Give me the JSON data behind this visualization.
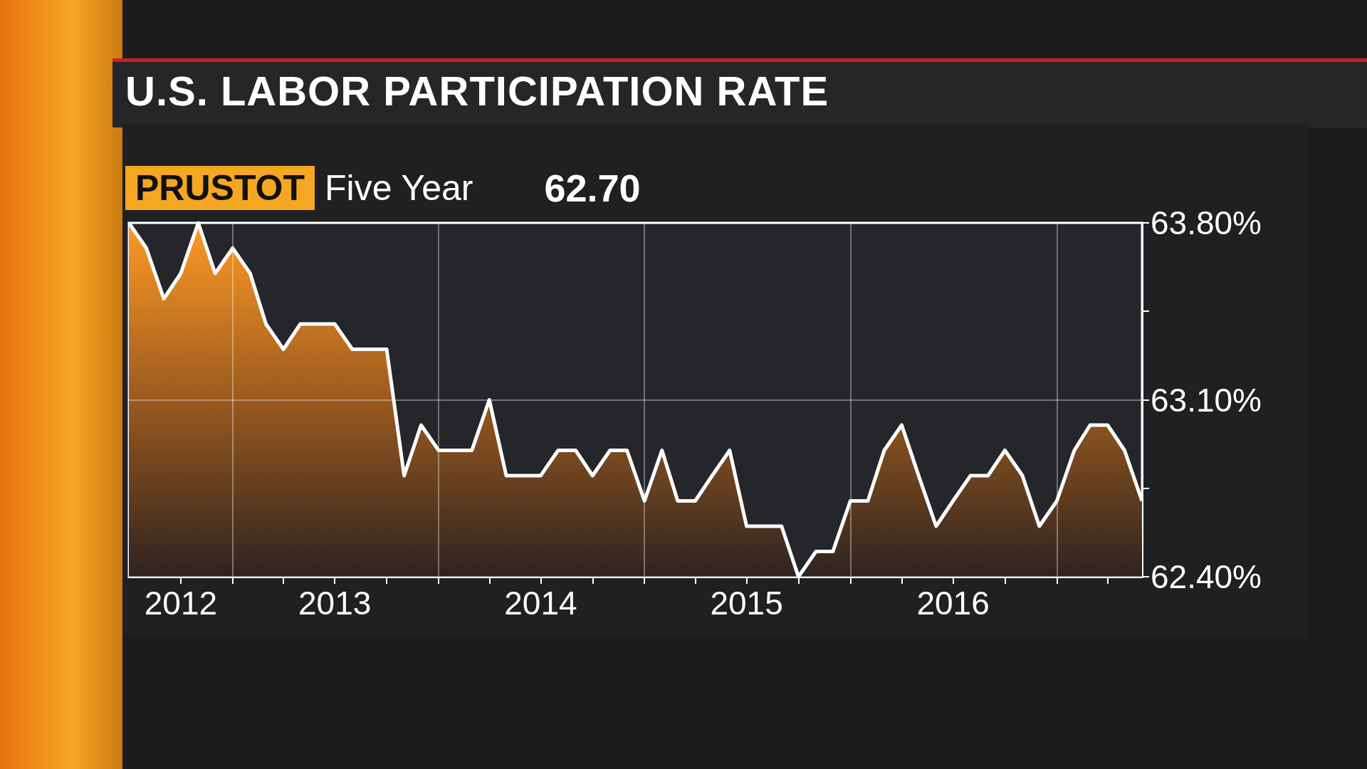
{
  "chart_data": {
    "type": "area",
    "title": "U.S. LABOR PARTICIPATION RATE",
    "subtitle": "Five Year",
    "annotations": [
      "PRUSTOT",
      "62.70"
    ],
    "x": [
      "2012-07",
      "2012-08",
      "2012-09",
      "2012-10",
      "2012-11",
      "2012-12",
      "2013-01",
      "2013-02",
      "2013-03",
      "2013-04",
      "2013-05",
      "2013-06",
      "2013-07",
      "2013-08",
      "2013-09",
      "2013-10",
      "2013-11",
      "2013-12",
      "2014-01",
      "2014-02",
      "2014-03",
      "2014-04",
      "2014-05",
      "2014-06",
      "2014-07",
      "2014-08",
      "2014-09",
      "2014-10",
      "2014-11",
      "2014-12",
      "2015-01",
      "2015-02",
      "2015-03",
      "2015-04",
      "2015-05",
      "2015-06",
      "2015-07",
      "2015-08",
      "2015-09",
      "2015-10",
      "2015-11",
      "2015-12",
      "2016-01",
      "2016-02",
      "2016-03",
      "2016-04",
      "2016-05",
      "2016-06",
      "2016-07",
      "2016-08",
      "2016-09",
      "2016-10",
      "2016-11",
      "2016-12",
      "2017-01",
      "2017-02",
      "2017-03",
      "2017-04",
      "2017-05",
      "2017-06"
    ],
    "series": [
      {
        "color": "#ffffff",
        "values": [
          63.8,
          63.7,
          63.5,
          63.6,
          63.8,
          63.6,
          63.7,
          63.6,
          63.4,
          63.3,
          63.4,
          63.4,
          63.4,
          63.3,
          63.3,
          63.3,
          62.8,
          63.0,
          62.9,
          62.9,
          62.9,
          63.1,
          62.8,
          62.8,
          62.8,
          62.9,
          62.9,
          62.8,
          62.9,
          62.9,
          62.7,
          62.9,
          62.7,
          62.7,
          62.8,
          62.9,
          62.6,
          62.6,
          62.6,
          62.4,
          62.5,
          62.5,
          62.7,
          62.7,
          62.9,
          63.0,
          62.8,
          62.6,
          62.7,
          62.8,
          62.8,
          62.9,
          62.8,
          62.6,
          62.7,
          62.9,
          63.0,
          63.0,
          62.9,
          62.7
        ]
      }
    ],
    "xlim": [
      "2012-07",
      "2017-06"
    ],
    "xticks": [
      {
        "value": "2012-10",
        "label": "2012"
      },
      {
        "value": "2013-01",
        "label": null
      },
      {
        "value": "2013-04",
        "label": null
      },
      {
        "value": "2013-07",
        "label": "2013"
      },
      {
        "value": "2013-10",
        "label": null
      },
      {
        "value": "2014-01",
        "label": null
      },
      {
        "value": "2014-04",
        "label": null
      },
      {
        "value": "2014-07",
        "label": "2014"
      },
      {
        "value": "2014-10",
        "label": null
      },
      {
        "value": "2015-01",
        "label": null
      },
      {
        "value": "2015-04",
        "label": null
      },
      {
        "value": "2015-07",
        "label": "2015"
      },
      {
        "value": "2015-10",
        "label": null
      },
      {
        "value": "2016-01",
        "label": null
      },
      {
        "value": "2016-04",
        "label": null
      },
      {
        "value": "2016-07",
        "label": "2016"
      },
      {
        "value": "2016-10",
        "label": null
      },
      {
        "value": "2017-01",
        "label": null
      },
      {
        "value": "2017-04",
        "label": null
      }
    ],
    "ylim": [
      62.4,
      63.8
    ],
    "yticks": [
      {
        "value": 62.4,
        "label": "62.40%"
      },
      {
        "value": 62.75,
        "label": null
      },
      {
        "value": 63.1,
        "label": "63.10%"
      },
      {
        "value": 63.45,
        "label": null
      },
      {
        "value": 63.8,
        "label": "63.80%"
      }
    ],
    "grid": true
  }
}
